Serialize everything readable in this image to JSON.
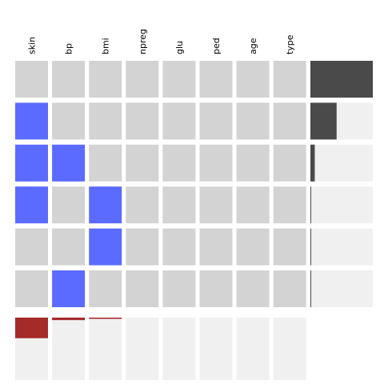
{
  "chart_data": {
    "type": "heatmap",
    "title": "",
    "columns": [
      "skin",
      "bp",
      "bmi",
      "npreg",
      "glu",
      "ped",
      "age",
      "type"
    ],
    "rows": [
      [
        0,
        0,
        0,
        0,
        0,
        0,
        0,
        0
      ],
      [
        1,
        0,
        0,
        0,
        0,
        0,
        0,
        0
      ],
      [
        1,
        1,
        0,
        0,
        0,
        0,
        0,
        0
      ],
      [
        1,
        0,
        1,
        0,
        0,
        0,
        0,
        0
      ],
      [
        0,
        0,
        1,
        0,
        0,
        0,
        0,
        0
      ],
      [
        0,
        1,
        0,
        0,
        0,
        0,
        0,
        0
      ]
    ],
    "row_counts": [
      1.0,
      0.42,
      0.07,
      0.01,
      0.01,
      0.01
    ],
    "column_missing": [
      0.33,
      0.04,
      0.02,
      0,
      0,
      0,
      0,
      0
    ],
    "legend": "none",
    "colors": {
      "missing": "#5b6bff",
      "present": "#d3d3d3",
      "row_bar": "#4a4a4a",
      "row_bar_bg": "#f0f0f0",
      "col_bar": "#a52a2a",
      "col_bar_bg": "#f0f0f0"
    }
  }
}
